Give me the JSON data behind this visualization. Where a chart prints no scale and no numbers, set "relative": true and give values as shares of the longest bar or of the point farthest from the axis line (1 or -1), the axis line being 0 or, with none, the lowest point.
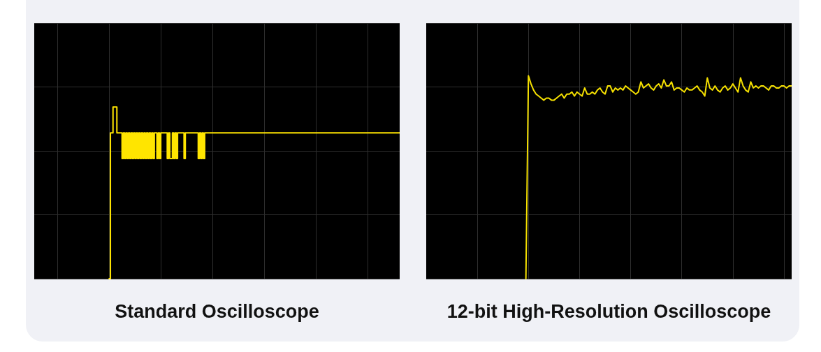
{
  "chart_data": [
    {
      "type": "step",
      "title": "Standard Oscilloscope",
      "relative": true,
      "grid": true,
      "tick_labels": false,
      "marker": "none",
      "line_style": "solid",
      "color": "#ffe500",
      "categories": [
        null,
        null,
        null,
        null,
        null,
        null,
        null,
        null,
        null,
        null,
        null,
        null,
        null,
        null,
        null,
        null,
        null,
        null,
        null,
        null,
        null,
        null,
        null,
        null,
        null,
        null,
        null,
        null,
        null,
        null,
        null,
        null,
        null,
        null,
        null,
        null,
        null,
        null,
        null,
        null,
        null,
        null,
        null,
        null,
        null,
        null,
        null,
        null,
        null,
        null,
        null,
        null,
        null,
        null,
        null,
        null,
        null,
        null,
        null,
        null,
        null,
        null,
        null,
        null,
        null,
        null,
        null,
        null,
        null,
        null,
        null,
        null,
        null,
        null,
        null,
        null,
        null,
        null,
        null,
        null,
        null,
        null,
        null,
        null,
        null,
        null,
        null,
        null,
        null,
        null,
        null,
        null,
        null,
        null,
        null,
        null,
        null,
        null,
        null,
        null,
        null,
        null,
        null,
        null,
        null,
        null,
        null,
        null,
        null,
        null,
        null,
        null,
        null,
        null,
        null,
        null,
        null,
        null,
        null,
        null,
        null,
        null,
        null,
        null,
        null,
        null,
        null,
        null,
        null,
        null,
        null,
        null,
        null,
        null,
        null,
        null,
        null,
        null,
        null,
        null,
        null,
        null,
        null,
        null,
        null,
        null,
        null,
        null,
        null,
        null,
        null,
        null,
        null,
        null,
        null,
        null,
        null,
        null,
        null,
        null,
        null,
        null,
        null,
        null,
        null,
        null,
        null,
        null,
        null,
        null,
        null,
        null,
        null,
        null,
        null,
        null,
        null,
        null,
        null,
        null,
        null,
        null,
        null,
        null,
        null,
        null,
        null,
        null,
        null,
        null,
        null,
        null,
        null,
        null,
        null,
        null,
        null,
        null,
        null,
        null,
        null,
        null,
        null,
        null,
        null,
        null,
        null,
        null,
        null,
        null,
        null,
        null,
        null,
        null,
        null,
        null,
        null,
        null,
        null,
        null,
        null,
        null,
        null,
        null,
        null,
        null,
        null,
        null,
        null,
        null,
        null,
        null,
        null,
        null,
        null,
        null,
        null,
        null,
        null,
        null,
        null,
        null,
        null,
        null,
        null,
        null,
        null,
        null,
        null,
        null,
        null,
        null,
        null,
        null,
        null,
        null,
        null,
        null,
        null,
        null,
        null,
        null,
        null,
        null,
        null,
        null,
        null,
        null,
        null,
        null,
        null,
        null,
        null,
        null,
        null,
        null,
        null,
        null,
        null,
        null,
        null,
        null,
        null,
        null
      ],
      "values": [
        null,
        null,
        null,
        null,
        null,
        null,
        null,
        null,
        null,
        null,
        null,
        null,
        null,
        null,
        null,
        null,
        null,
        null,
        null,
        null,
        null,
        null,
        null,
        null,
        null,
        null,
        null,
        null,
        null,
        null,
        null,
        null,
        null,
        null,
        null,
        null,
        null,
        null,
        null,
        null,
        null,
        null,
        null,
        null,
        null,
        null,
        null,
        null,
        null,
        null,
        null,
        null,
        null,
        null,
        null,
        null,
        null,
        null,
        0,
        0.85,
        0.85,
        1,
        1,
        1,
        0.85,
        0.85,
        0.85,
        0.85,
        0.7,
        0.85,
        0.7,
        0.85,
        0.7,
        0.85,
        0.7,
        0.85,
        0.7,
        0.85,
        0.7,
        0.85,
        0.7,
        0.85,
        0.7,
        0.85,
        0.7,
        0.85,
        0.7,
        0.85,
        0.7,
        0.85,
        0.7,
        0.85,
        0.7,
        0.85,
        0.85,
        0.7,
        0.85,
        0.7,
        0.85,
        0.85,
        0.85,
        0.85,
        0.85,
        0.7,
        0.85,
        0.7,
        0.7,
        0.85,
        0.7,
        0.85,
        0.7,
        0.85,
        0.85,
        0.85,
        0.85,
        0.85,
        0.7,
        0.85,
        0.85,
        0.85,
        0.85,
        0.85,
        0.85,
        0.85,
        0.85,
        0.85,
        0.85,
        0.7,
        0.85,
        0.7,
        0.85,
        0.7,
        0.85,
        0.85,
        0.85,
        0.85,
        0.85,
        0.85,
        0.85,
        0.85,
        0.85,
        0.85,
        0.85,
        0.85,
        0.85,
        0.85,
        0.85,
        0.85,
        0.85,
        0.85,
        0.85,
        0.85,
        0.85,
        0.85,
        0.85,
        0.85,
        0.85,
        0.85,
        0.85,
        0.85,
        0.85,
        0.85,
        0.85,
        0.85,
        0.85,
        0.85,
        0.85,
        0.85,
        0.85,
        0.85,
        0.85,
        0.85,
        0.85,
        0.85,
        0.85,
        0.85,
        0.85,
        0.85,
        0.85,
        0.85,
        0.85,
        0.85,
        0.85,
        0.85,
        0.85,
        0.85,
        0.85,
        0.85,
        0.85,
        0.85,
        0.85,
        0.85,
        0.85,
        0.85,
        0.85,
        0.85,
        0.85,
        0.85,
        0.85,
        0.85,
        0.85,
        0.85,
        0.85,
        0.85,
        0.85,
        0.85,
        0.85,
        0.85,
        0.85,
        0.85,
        0.85,
        0.85,
        0.85,
        0.85,
        0.85,
        0.85,
        0.85,
        0.85,
        0.85,
        0.85,
        0.85,
        0.85,
        0.85,
        0.85,
        0.85,
        0.85,
        0.85,
        0.85,
        0.85,
        0.85,
        0.85,
        0.85,
        0.85,
        0.85,
        0.85,
        0.85,
        0.85,
        0.85,
        0.85,
        0.85,
        0.85,
        0.85,
        0.85,
        0.85,
        0.85,
        0.85,
        0.85,
        0.85,
        0.85,
        0.85,
        0.85,
        0.85,
        0.85,
        0.85,
        0.85,
        0.85,
        0.85,
        0.85,
        0.85,
        0.85,
        0.85,
        0.85,
        0.85,
        0.85,
        0.85,
        0.85,
        0.85,
        0.85,
        0.85,
        0.85,
        0.85,
        0.85,
        0.85,
        0.85,
        0.85,
        0.85,
        0.85,
        0.85,
        0.85,
        0.85,
        0.85,
        0.85,
        0.85,
        0.85
      ]
    },
    {
      "type": "line",
      "title": "12-bit High-Resolution Oscilloscope",
      "relative": true,
      "grid": true,
      "tick_labels": false,
      "marker": "none",
      "line_style": "solid",
      "color": "#f5e000",
      "categories": [
        null,
        null,
        null,
        null,
        null,
        null,
        null,
        null,
        null,
        null,
        null,
        null,
        null,
        null,
        null,
        null,
        null,
        null,
        null,
        null,
        null,
        null,
        null,
        null,
        null,
        null,
        null,
        null,
        null,
        null,
        null,
        null,
        null,
        null,
        null,
        null,
        null,
        null,
        null,
        null,
        null,
        null,
        null,
        null,
        null,
        null,
        null,
        null,
        null,
        null,
        null,
        null,
        null,
        null,
        null,
        null,
        null,
        null,
        null,
        null,
        null,
        null,
        null,
        null,
        null,
        null,
        null,
        null,
        null,
        null,
        null,
        null,
        null,
        null,
        null,
        null,
        null,
        null,
        null,
        null,
        null,
        null,
        null,
        null,
        null,
        null,
        null,
        null,
        null,
        null,
        null,
        null,
        null,
        null,
        null,
        null,
        null,
        null,
        null,
        null,
        null,
        null,
        null,
        null,
        null,
        null,
        null,
        null,
        null,
        null,
        null,
        null,
        null,
        null,
        null,
        null,
        null,
        null,
        null,
        null,
        null,
        null,
        null,
        null,
        null,
        null,
        null,
        null,
        null,
        null,
        null,
        null,
        null,
        null,
        null,
        null,
        null,
        null,
        null,
        null,
        null,
        null,
        null,
        null
      ],
      "values": [
        null,
        null,
        null,
        null,
        null,
        null,
        null,
        null,
        null,
        null,
        null,
        null,
        null,
        null,
        null,
        null,
        null,
        null,
        null,
        null,
        null,
        null,
        null,
        null,
        null,
        null,
        null,
        null,
        null,
        null,
        null,
        null,
        null,
        null,
        null,
        null,
        null,
        null,
        null,
        0,
        1,
        0.96,
        0.93,
        0.91,
        0.9,
        0.89,
        0.88,
        0.89,
        0.89,
        0.88,
        0.88,
        0.89,
        0.9,
        0.91,
        0.89,
        0.91,
        0.91,
        0.92,
        0.9,
        0.92,
        0.91,
        0.9,
        0.94,
        0.91,
        0.91,
        0.92,
        0.91,
        0.93,
        0.94,
        0.92,
        0.91,
        0.95,
        0.95,
        0.92,
        0.94,
        0.93,
        0.94,
        0.93,
        0.95,
        0.94,
        0.93,
        0.92,
        0.91,
        0.92,
        0.97,
        0.94,
        0.95,
        0.96,
        0.94,
        0.93,
        0.95,
        0.96,
        0.94,
        0.98,
        0.95,
        0.95,
        0.97,
        0.93,
        0.94,
        0.94,
        0.93,
        0.92,
        0.94,
        0.93,
        0.93,
        0.94,
        0.95,
        0.93,
        0.92,
        0.9,
        0.99,
        0.94,
        0.93,
        0.95,
        0.93,
        0.92,
        0.94,
        0.95,
        0.93,
        0.94,
        0.96,
        0.94,
        0.92,
        0.99,
        0.95,
        0.93,
        0.92,
        0.97,
        0.94,
        0.95,
        0.94,
        0.95,
        0.95,
        0.94,
        0.93,
        0.95,
        0.95,
        0.94,
        0.94,
        0.95,
        0.95,
        0.94,
        0.95,
        0.95
      ]
    }
  ]
}
